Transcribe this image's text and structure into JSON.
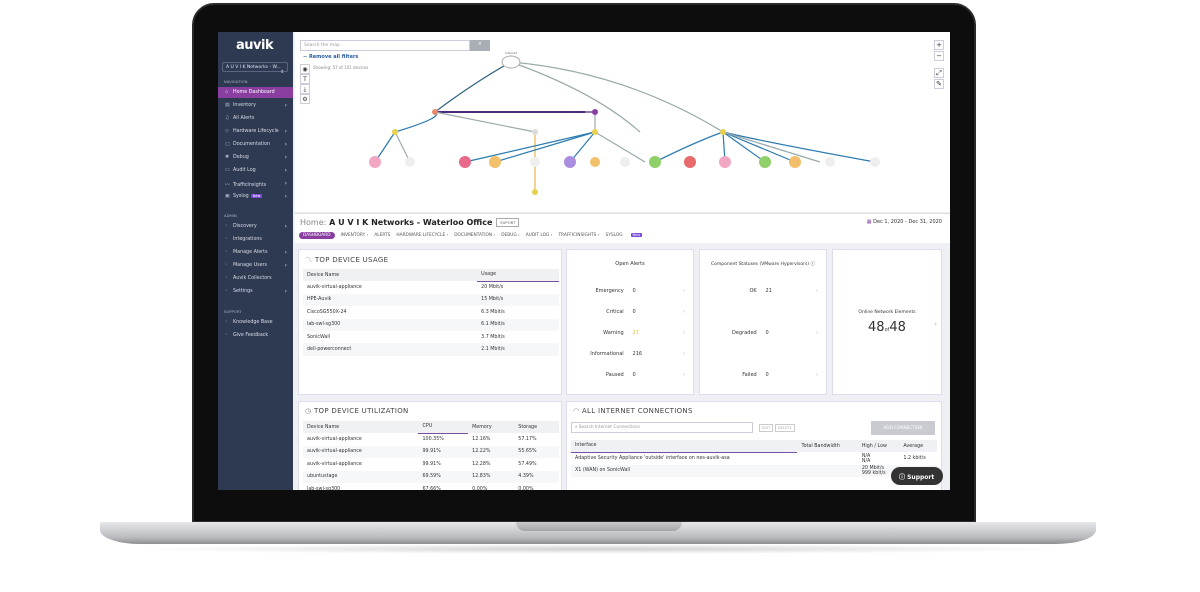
{
  "sidebar": {
    "logo": "auvik",
    "org_selector": "A U V I K Networks - W...",
    "sections": {
      "navigation": "NAVIGATION",
      "admin": "ADMIN",
      "support": "SUPPORT"
    },
    "nav": [
      {
        "label": "Home Dashboard",
        "icon": "home-icon",
        "active": true
      },
      {
        "label": "Inventory",
        "icon": "inventory-icon",
        "chevron": true
      },
      {
        "label": "All Alerts",
        "icon": "bell-icon"
      },
      {
        "label": "Hardware Lifecycle",
        "icon": "shield-icon",
        "chevron": true
      },
      {
        "label": "Documentation",
        "icon": "document-icon",
        "chevron": true
      },
      {
        "label": "Debug",
        "icon": "debug-icon",
        "chevron": true
      },
      {
        "label": "Audit Log",
        "icon": "log-icon",
        "chevron": true
      },
      {
        "label": "TrafficInsights",
        "icon": "chart-line-icon",
        "chevron": true
      },
      {
        "label": "Syslog",
        "icon": "syslog-icon",
        "badge": "New",
        "chevron": true
      }
    ],
    "admin": [
      {
        "label": "Discovery",
        "chevron": true
      },
      {
        "label": "Integrations"
      },
      {
        "label": "Manage Alerts",
        "chevron": true
      },
      {
        "label": "Manage Users",
        "chevron": true
      },
      {
        "label": "Auvik Collectors"
      },
      {
        "label": "Settings",
        "chevron": true
      }
    ],
    "support": [
      {
        "label": "Knowledge Base"
      },
      {
        "label": "Give Feedback"
      }
    ]
  },
  "map": {
    "search_placeholder": "Search the map",
    "remove_filters": "Remove all filters",
    "showing": "Showing: 57 of 101 devices",
    "root_label": "Internet"
  },
  "header": {
    "home": "Home:",
    "title": "A U V I K Networks - Waterloo Office",
    "export": "EXPORT",
    "date_range": "Dec 1, 2020 - Dec 31, 2020"
  },
  "tabs": [
    "DASHBOARD",
    "INVENTORY ›",
    "ALERTS",
    "HARDWARE LIFECYCLE ›",
    "DOCUMENTATION ›",
    "DEBUG ›",
    "AUDIT LOG ›",
    "TRAFFICINSIGHTS ›",
    "SYSLOG"
  ],
  "tabs_new_badge": "New",
  "top_device_usage": {
    "title": "TOP DEVICE USAGE",
    "columns": [
      "Device Name",
      "Usage"
    ],
    "rows": [
      [
        "auvik-virtual-appliance",
        "20 Mbit/s"
      ],
      [
        "HPE-Auvik",
        "15 Mbit/s"
      ],
      [
        "CiscoSG550X-24",
        "6.3 Mbit/s"
      ],
      [
        "lab-swl-sg300",
        "6.1 Mbit/s"
      ],
      [
        "SonicWall",
        "3.7 Mbit/s"
      ],
      [
        "dell-powerconnect",
        "2.1 Mbit/s"
      ]
    ]
  },
  "open_alerts": {
    "title": "Open Alerts",
    "rows": [
      [
        "Emergency",
        "0"
      ],
      [
        "Critical",
        "0"
      ],
      [
        "Warning",
        "27"
      ],
      [
        "Informational",
        "216"
      ],
      [
        "Paused",
        "0"
      ]
    ],
    "warning_color": "#e6c229"
  },
  "component_statuses": {
    "title": "Component Statuses (VMware Hypervisors)",
    "rows": [
      [
        "OK",
        "21"
      ],
      [
        "Degraded",
        "0"
      ],
      [
        "Failed",
        "0"
      ]
    ]
  },
  "online_elements": {
    "title": "Online Network Elements",
    "online": "48",
    "of": "of",
    "total": "48"
  },
  "top_device_utilization": {
    "title": "TOP DEVICE UTILIZATION",
    "columns": [
      "Device Name",
      "CPU",
      "Memory",
      "Storage"
    ],
    "rows": [
      [
        "auvik-virtual-appliance",
        "100.35%",
        "12.16%",
        "57.17%"
      ],
      [
        "auvik-virtual-appliance",
        "99.91%",
        "12.22%",
        "55.65%"
      ],
      [
        "auvik-virtual-appliance",
        "99.91%",
        "12.28%",
        "57.49%"
      ],
      [
        "ubuntustage",
        "69.59%",
        "12.83%",
        "4.39%"
      ],
      [
        "lab-swl-sg300",
        "67.66%",
        "0.00%",
        "0.00%"
      ]
    ]
  },
  "internet_connections": {
    "title": "ALL INTERNET CONNECTIONS",
    "search_placeholder": "Search Internet Connections",
    "edit": "EDIT",
    "delete": "DELETE",
    "add": "ADD CONNECTION",
    "columns": [
      "Interface",
      "Total Bandwidth",
      "High / Low",
      "Average"
    ],
    "rows": [
      [
        "Adaptive Security Appliance 'outside' interface on nes-auvik-asa",
        "",
        "N/A\nN/A",
        "1.2 kbit/s"
      ],
      [
        "X1 (WAN) on SonicWall",
        "",
        "20 Mbit/s\n999 kbit/s",
        "1.8"
      ]
    ]
  },
  "support_button": "Support",
  "accent": "#8a3ea0"
}
